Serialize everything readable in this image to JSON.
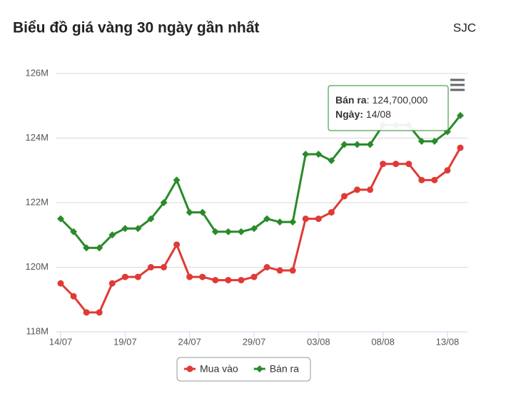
{
  "chart_data": {
    "type": "line",
    "title": "Biểu đồ giá vàng 30 ngày gần nhất",
    "subtitle": "SJC",
    "categories": [
      "14/07",
      null,
      null,
      null,
      null,
      "19/07",
      null,
      null,
      null,
      null,
      "24/07",
      null,
      null,
      null,
      null,
      "29/07",
      null,
      null,
      null,
      null,
      "03/08",
      null,
      null,
      null,
      null,
      "08/08",
      null,
      null,
      null,
      null,
      "13/08",
      null
    ],
    "series": [
      {
        "name": "Mua vào",
        "color": "#e03a36",
        "marker": "circle",
        "values": [
          119500000,
          119100000,
          118600000,
          118600000,
          119500000,
          119700000,
          119700000,
          120000000,
          120000000,
          120700000,
          119700000,
          119700000,
          119600000,
          119600000,
          119600000,
          119700000,
          120000000,
          119900000,
          119900000,
          121500000,
          121500000,
          121700000,
          122200000,
          122400000,
          122400000,
          123200000,
          123200000,
          123200000,
          122700000,
          122700000,
          123000000,
          123700000
        ]
      },
      {
        "name": "Bán ra",
        "color": "#2a8a2a",
        "marker": "diamond",
        "values": [
          121500000,
          121100000,
          120600000,
          120600000,
          121000000,
          121200000,
          121200000,
          121500000,
          122000000,
          122700000,
          121700000,
          121700000,
          121100000,
          121100000,
          121100000,
          121200000,
          121500000,
          121400000,
          121400000,
          123500000,
          123500000,
          123300000,
          123800000,
          123800000,
          123800000,
          124400000,
          124400000,
          124400000,
          123900000,
          123900000,
          124200000,
          124700000
        ]
      }
    ],
    "ylim": [
      118000000,
      126000000
    ],
    "yticks": [
      {
        "value": 118000000,
        "label": "118M"
      },
      {
        "value": 120000000,
        "label": "120M"
      },
      {
        "value": 122000000,
        "label": "122M"
      },
      {
        "value": 124000000,
        "label": "124M"
      },
      {
        "value": 126000000,
        "label": "126M"
      }
    ],
    "grid": true,
    "legend": "bottom",
    "tooltip": {
      "name": "Bán ra",
      "separator": ":",
      "value_label": "124,700,000",
      "date_name": "Ngày",
      "date": "14/08"
    }
  }
}
